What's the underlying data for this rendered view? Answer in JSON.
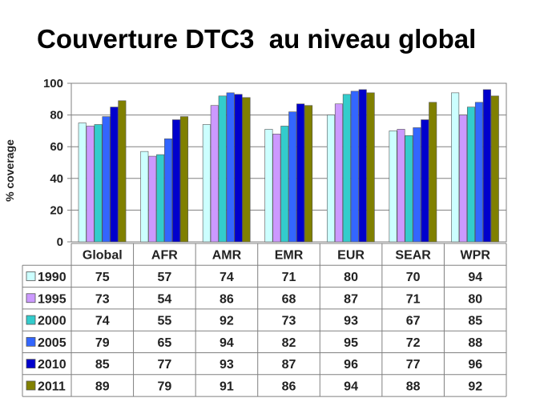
{
  "title": "Couverture DTC3  au niveau global",
  "chart_data": {
    "type": "bar",
    "title": "Couverture DTC3  au niveau global",
    "xlabel": "",
    "ylabel": "% coverage",
    "ylim": [
      0,
      100
    ],
    "yticks": [
      0,
      20,
      40,
      60,
      80,
      100
    ],
    "grid": true,
    "legend": "data table below chart",
    "categories": [
      "Global",
      "AFR",
      "AMR",
      "EMR",
      "EUR",
      "SEAR",
      "WPR"
    ],
    "series": [
      {
        "name": "1990",
        "color": "#ccffff",
        "values": [
          75,
          57,
          74,
          71,
          80,
          70,
          94
        ]
      },
      {
        "name": "1995",
        "color": "#cc99ff",
        "values": [
          73,
          54,
          86,
          68,
          87,
          71,
          80
        ]
      },
      {
        "name": "2000",
        "color": "#33cccc",
        "values": [
          74,
          55,
          92,
          73,
          93,
          67,
          85
        ]
      },
      {
        "name": "2005",
        "color": "#3366ff",
        "values": [
          79,
          65,
          94,
          82,
          95,
          72,
          88
        ]
      },
      {
        "name": "2010",
        "color": "#0000cc",
        "values": [
          85,
          77,
          93,
          87,
          96,
          77,
          96
        ]
      },
      {
        "name": "2011",
        "color": "#808000",
        "values": [
          89,
          79,
          91,
          86,
          94,
          88,
          92
        ]
      }
    ]
  }
}
